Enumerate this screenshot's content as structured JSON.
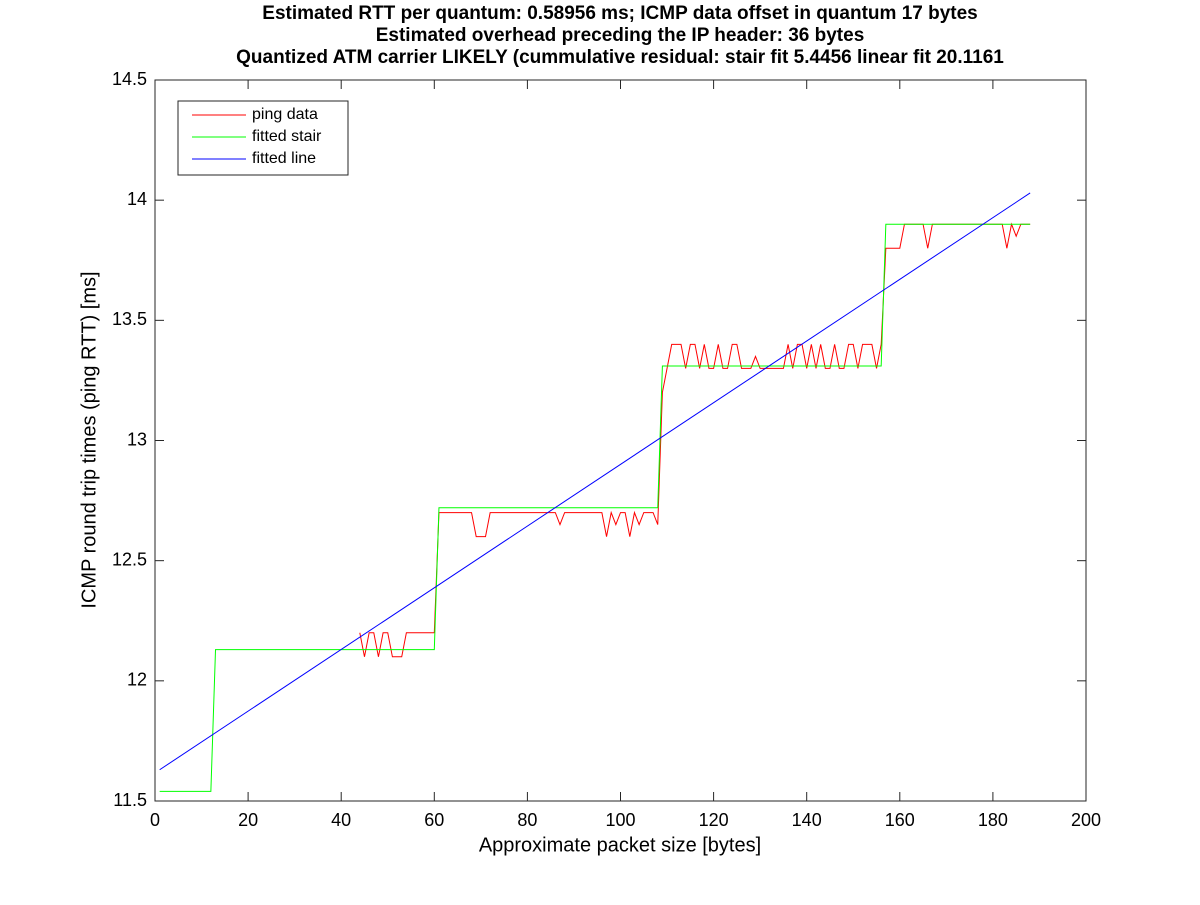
{
  "chart_data": {
    "type": "line",
    "title": [
      "Estimated RTT per quantum: 0.58956 ms; ICMP data offset in quantum 17 bytes",
      "Estimated overhead preceding the IP header: 36 bytes",
      "Quantized ATM carrier LIKELY (cummulative residual: stair fit 5.4456 linear fit 20.1161"
    ],
    "x_label": "Approximate packet size [bytes]",
    "y_label": "ICMP round trip times (ping RTT) [ms]",
    "xlim": [
      0,
      200
    ],
    "ylim": [
      11.5,
      14.5
    ],
    "xticks": [
      0,
      20,
      40,
      60,
      80,
      100,
      120,
      140,
      160,
      180,
      200
    ],
    "yticks": [
      11.5,
      12,
      12.5,
      13,
      13.5,
      14,
      14.5
    ],
    "legend": "upper left",
    "series": [
      {
        "name": "ping data",
        "color": "#ff0000",
        "x": [
          44,
          45,
          46,
          47,
          48,
          49,
          50,
          51,
          52,
          53,
          54,
          55,
          56,
          57,
          58,
          59,
          60,
          61,
          62,
          63,
          64,
          65,
          66,
          67,
          68,
          69,
          70,
          71,
          72,
          73,
          74,
          75,
          76,
          77,
          78,
          79,
          80,
          81,
          82,
          83,
          84,
          85,
          86,
          87,
          88,
          89,
          90,
          91,
          92,
          93,
          94,
          95,
          96,
          97,
          98,
          99,
          100,
          101,
          102,
          103,
          104,
          105,
          106,
          107,
          108,
          109,
          110,
          111,
          112,
          113,
          114,
          115,
          116,
          117,
          118,
          119,
          120,
          121,
          122,
          123,
          124,
          125,
          126,
          127,
          128,
          129,
          130,
          131,
          132,
          133,
          134,
          135,
          136,
          137,
          138,
          139,
          140,
          141,
          142,
          143,
          144,
          145,
          146,
          147,
          148,
          149,
          150,
          151,
          152,
          153,
          154,
          155,
          156,
          157,
          158,
          159,
          160,
          161,
          162,
          163,
          164,
          165,
          166,
          167,
          168,
          169,
          170,
          171,
          172,
          173,
          174,
          175,
          176,
          177,
          178,
          179,
          180,
          181,
          182,
          183,
          184,
          185,
          186,
          187,
          188
        ],
        "values": [
          12.2,
          12.1,
          12.2,
          12.2,
          12.1,
          12.2,
          12.2,
          12.1,
          12.1,
          12.1,
          12.2,
          12.2,
          12.2,
          12.2,
          12.2,
          12.2,
          12.2,
          12.7,
          12.7,
          12.7,
          12.7,
          12.7,
          12.7,
          12.7,
          12.7,
          12.6,
          12.6,
          12.6,
          12.7,
          12.7,
          12.7,
          12.7,
          12.7,
          12.7,
          12.7,
          12.7,
          12.7,
          12.7,
          12.7,
          12.7,
          12.7,
          12.7,
          12.7,
          12.65,
          12.7,
          12.7,
          12.7,
          12.7,
          12.7,
          12.7,
          12.7,
          12.7,
          12.7,
          12.6,
          12.7,
          12.65,
          12.7,
          12.7,
          12.6,
          12.7,
          12.65,
          12.7,
          12.7,
          12.7,
          12.65,
          13.2,
          13.3,
          13.4,
          13.4,
          13.4,
          13.3,
          13.4,
          13.4,
          13.3,
          13.4,
          13.3,
          13.3,
          13.4,
          13.3,
          13.3,
          13.4,
          13.4,
          13.3,
          13.3,
          13.3,
          13.35,
          13.3,
          13.3,
          13.3,
          13.3,
          13.3,
          13.3,
          13.4,
          13.3,
          13.4,
          13.4,
          13.3,
          13.4,
          13.3,
          13.4,
          13.3,
          13.3,
          13.4,
          13.3,
          13.3,
          13.4,
          13.4,
          13.3,
          13.4,
          13.4,
          13.4,
          13.3,
          13.4,
          13.8,
          13.8,
          13.8,
          13.8,
          13.9,
          13.9,
          13.9,
          13.9,
          13.9,
          13.8,
          13.9,
          13.9,
          13.9,
          13.9,
          13.9,
          13.9,
          13.9,
          13.9,
          13.9,
          13.9,
          13.9,
          13.9,
          13.9,
          13.9,
          13.9,
          13.9,
          13.8,
          13.9,
          13.85,
          13.9,
          13.9,
          13.9
        ]
      },
      {
        "name": "fitted stair",
        "color": "#00ff00",
        "x": [
          1,
          12,
          13,
          60,
          61,
          108,
          109,
          156,
          157,
          188
        ],
        "values": [
          11.54,
          11.54,
          12.13,
          12.13,
          12.72,
          12.72,
          13.31,
          13.31,
          13.9,
          13.9
        ]
      },
      {
        "name": "fitted line",
        "color": "#0000ff",
        "x": [
          1,
          188
        ],
        "values": [
          11.63,
          14.03
        ]
      }
    ]
  }
}
